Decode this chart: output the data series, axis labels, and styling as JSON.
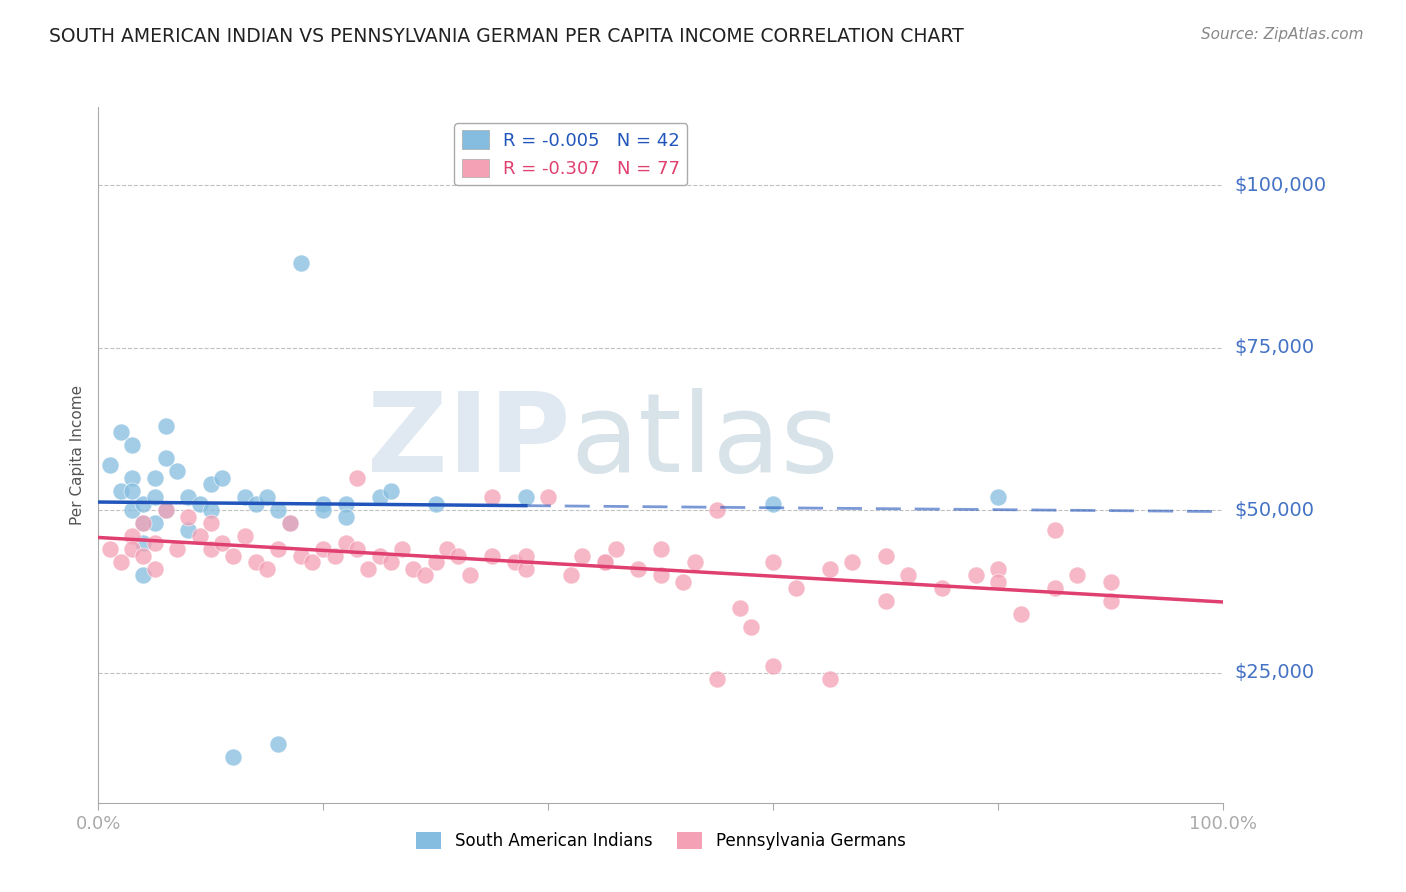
{
  "title": "SOUTH AMERICAN INDIAN VS PENNSYLVANIA GERMAN PER CAPITA INCOME CORRELATION CHART",
  "source": "Source: ZipAtlas.com",
  "ylabel": "Per Capita Income",
  "ytick_labels": [
    "$25,000",
    "$50,000",
    "$75,000",
    "$100,000"
  ],
  "ytick_values": [
    25000,
    50000,
    75000,
    100000
  ],
  "ymin": 5000,
  "ymax": 112000,
  "xmin": 0,
  "xmax": 1.0,
  "legend_r1": "R = -0.005",
  "legend_n1": "N = 42",
  "legend_r2": "R = -0.307",
  "legend_n2": "N = 77",
  "color_blue": "#85bde0",
  "color_pink": "#f4a0b5",
  "color_line_blue": "#2255bb",
  "color_line_pink": "#e04070",
  "color_grid": "#bbbbbb",
  "color_title": "#222222",
  "color_yaxis": "#4472c4",
  "background": "#ffffff",
  "watermark_zip": "ZIP",
  "watermark_atlas": "atlas",
  "blue_x": [
    0.01,
    0.02,
    0.02,
    0.03,
    0.03,
    0.03,
    0.03,
    0.04,
    0.04,
    0.04,
    0.04,
    0.05,
    0.05,
    0.05,
    0.06,
    0.06,
    0.06,
    0.07,
    0.08,
    0.08,
    0.09,
    0.1,
    0.1,
    0.11,
    0.13,
    0.14,
    0.15,
    0.16,
    0.17,
    0.18,
    0.2,
    0.22,
    0.22,
    0.25,
    0.26,
    0.3,
    0.16,
    0.12,
    0.2,
    0.38,
    0.6,
    0.8
  ],
  "blue_y": [
    57000,
    62000,
    53000,
    55000,
    60000,
    50000,
    53000,
    51000,
    48000,
    45000,
    40000,
    52000,
    55000,
    48000,
    58000,
    63000,
    50000,
    56000,
    52000,
    47000,
    51000,
    50000,
    54000,
    55000,
    52000,
    51000,
    52000,
    50000,
    48000,
    88000,
    51000,
    51000,
    49000,
    52000,
    53000,
    51000,
    14000,
    12000,
    50000,
    52000,
    51000,
    52000
  ],
  "pink_x": [
    0.01,
    0.02,
    0.03,
    0.03,
    0.04,
    0.04,
    0.05,
    0.05,
    0.06,
    0.07,
    0.08,
    0.09,
    0.1,
    0.1,
    0.11,
    0.12,
    0.13,
    0.14,
    0.15,
    0.16,
    0.17,
    0.18,
    0.19,
    0.2,
    0.21,
    0.22,
    0.23,
    0.24,
    0.25,
    0.26,
    0.27,
    0.28,
    0.29,
    0.3,
    0.31,
    0.32,
    0.33,
    0.35,
    0.37,
    0.38,
    0.4,
    0.42,
    0.43,
    0.45,
    0.46,
    0.48,
    0.5,
    0.52,
    0.53,
    0.55,
    0.57,
    0.58,
    0.6,
    0.62,
    0.65,
    0.67,
    0.7,
    0.72,
    0.75,
    0.78,
    0.8,
    0.82,
    0.85,
    0.87,
    0.9,
    0.38,
    0.45,
    0.55,
    0.6,
    0.65,
    0.85,
    0.9,
    0.23,
    0.35,
    0.5,
    0.7,
    0.8
  ],
  "pink_y": [
    44000,
    42000,
    46000,
    44000,
    48000,
    43000,
    45000,
    41000,
    50000,
    44000,
    49000,
    46000,
    44000,
    48000,
    45000,
    43000,
    46000,
    42000,
    41000,
    44000,
    48000,
    43000,
    42000,
    44000,
    43000,
    45000,
    44000,
    41000,
    43000,
    42000,
    44000,
    41000,
    40000,
    42000,
    44000,
    43000,
    40000,
    43000,
    42000,
    41000,
    52000,
    40000,
    43000,
    42000,
    44000,
    41000,
    40000,
    39000,
    42000,
    50000,
    35000,
    32000,
    42000,
    38000,
    41000,
    42000,
    36000,
    40000,
    38000,
    40000,
    41000,
    34000,
    38000,
    40000,
    36000,
    43000,
    42000,
    24000,
    26000,
    24000,
    47000,
    39000,
    55000,
    52000,
    44000,
    43000,
    39000
  ]
}
